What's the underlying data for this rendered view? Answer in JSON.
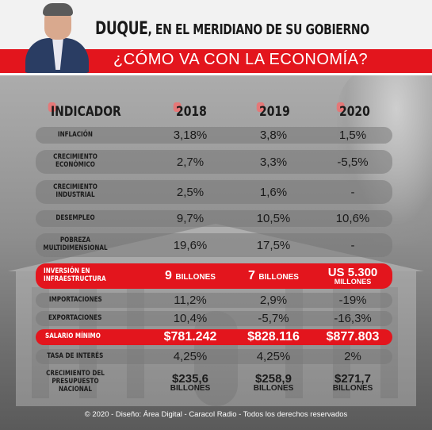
{
  "header": {
    "title_main": "DUQUE",
    "title_rest": ", EN EL MERIDIANO DE SU GOBIERNO",
    "subtitle": "¿CÓMO VA CON LA ECONOMÍA?"
  },
  "table": {
    "columns": [
      "INDICADOR",
      "2018",
      "2019",
      "2020"
    ],
    "rows": [
      {
        "label": "INFLACIÓN",
        "v2018": "3,18%",
        "v2019": "3,8%",
        "v2020": "1,5%"
      },
      {
        "label": "CRECIMIENTO ECONÓMICO",
        "v2018": "2,7%",
        "v2019": "3,3%",
        "v2020": "-5,5%"
      },
      {
        "label": "CRECIMIENTO INDUSTRIAL",
        "v2018": "2,5%",
        "v2019": "1,6%",
        "v2020": "-"
      },
      {
        "label": "DESEMPLEO",
        "v2018": "9,7%",
        "v2019": "10,5%",
        "v2020": "10,6%"
      },
      {
        "label": "POBREZA MULTIDIMENSIONAL",
        "v2018": "19,6%",
        "v2019": "17,5%",
        "v2020": "-"
      },
      {
        "label": "INVERSIÓN EN INFRAESTRUCTURA",
        "v2018_num": "9",
        "v2018_unit": "BILLONES",
        "v2019_num": "7",
        "v2019_unit": "BILLONES",
        "v2020_num": "US 5.300",
        "v2020_unit": "MILLONES"
      },
      {
        "label": "IMPORTACIONES",
        "v2018": "11,2%",
        "v2019": "2,9%",
        "v2020": "-19%"
      },
      {
        "label": "EXPORTACIONES",
        "v2018": "10,4%",
        "v2019": "-5,7%",
        "v2020": "-16,3%"
      },
      {
        "label": "SALARIO MÍNIMO",
        "v2018": "$781.242",
        "v2019": "$828.116",
        "v2020": "$877.803"
      },
      {
        "label": "TASA DE INTERÉS",
        "v2018": "4,25%",
        "v2019": "4,25%",
        "v2020": "2%"
      },
      {
        "label": "CRECIMIENTO DEL PRESUPUESTO NACIONAL",
        "v2018_num": "$235,6",
        "v2018_unit": "BILLONES",
        "v2019_num": "$258,9",
        "v2019_unit": "BILLONES",
        "v2020_num": "$271,7",
        "v2020_unit": "BILLONES"
      }
    ]
  },
  "footer": "© 2020 - Diseño: Área Digital - Caracol Radio - Todos los derechos reservados",
  "colors": {
    "accent_red": "#e3151d",
    "row_gray": "#787878"
  }
}
